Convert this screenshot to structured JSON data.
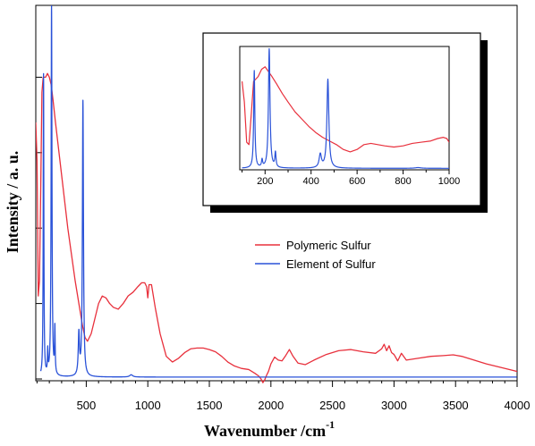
{
  "chart_data": {
    "type": "line",
    "xlabel": "Wavenumber /cm",
    "xlabel_sup": "-1",
    "ylabel": "Intensity / a. u.",
    "xlim": [
      90,
      4000
    ],
    "ylim": [
      0,
      1.0
    ],
    "x_ticks": [
      500,
      1000,
      1500,
      2000,
      2500,
      3000,
      3500,
      4000
    ],
    "legend": {
      "placement": "center-right"
    },
    "colors": {
      "polymeric": "#e8303c",
      "element": "#2a52d8"
    },
    "series": [
      {
        "name": "Polymeric Sulfur",
        "color": "#e8303c",
        "x": [
          90,
          100,
          110,
          120,
          130,
          140,
          150,
          160,
          170,
          185,
          200,
          215,
          230,
          250,
          275,
          300,
          325,
          350,
          380,
          410,
          440,
          470,
          490,
          510,
          540,
          570,
          600,
          630,
          660,
          690,
          720,
          760,
          800,
          840,
          880,
          920,
          950,
          975,
          990,
          1000,
          1010,
          1030,
          1060,
          1100,
          1150,
          1200,
          1250,
          1300,
          1350,
          1400,
          1450,
          1500,
          1550,
          1600,
          1650,
          1700,
          1760,
          1820,
          1870,
          1900,
          1920,
          1935,
          1950,
          1965,
          1980,
          2000,
          2030,
          2060,
          2090,
          2120,
          2150,
          2180,
          2220,
          2280,
          2350,
          2450,
          2550,
          2650,
          2750,
          2850,
          2900,
          2920,
          2940,
          2960,
          2980,
          3000,
          3030,
          3060,
          3100,
          3200,
          3300,
          3400,
          3480,
          3550,
          3650,
          3750,
          3850,
          3950,
          4000
        ],
        "y": [
          0.68,
          0.58,
          0.22,
          0.26,
          0.5,
          0.76,
          0.8,
          0.8,
          0.8,
          0.81,
          0.8,
          0.78,
          0.74,
          0.68,
          0.61,
          0.54,
          0.47,
          0.4,
          0.33,
          0.26,
          0.2,
          0.14,
          0.11,
          0.1,
          0.12,
          0.16,
          0.2,
          0.22,
          0.215,
          0.2,
          0.19,
          0.185,
          0.2,
          0.22,
          0.23,
          0.245,
          0.255,
          0.255,
          0.245,
          0.215,
          0.25,
          0.25,
          0.19,
          0.12,
          0.06,
          0.045,
          0.055,
          0.07,
          0.08,
          0.082,
          0.082,
          0.078,
          0.072,
          0.06,
          0.045,
          0.035,
          0.028,
          0.025,
          0.015,
          0.008,
          0.0,
          -0.01,
          -0.002,
          0.01,
          0.02,
          0.04,
          0.058,
          0.05,
          0.048,
          0.062,
          0.078,
          0.06,
          0.042,
          0.038,
          0.05,
          0.065,
          0.075,
          0.078,
          0.072,
          0.068,
          0.08,
          0.092,
          0.075,
          0.088,
          0.07,
          0.065,
          0.048,
          0.068,
          0.05,
          0.055,
          0.06,
          0.062,
          0.064,
          0.06,
          0.05,
          0.04,
          0.032,
          0.024,
          0.02
        ]
      },
      {
        "name": "Element of Sulfur",
        "color": "#2a52d8",
        "peaks": [
          {
            "x": 153,
            "h": 0.8,
            "w": 3
          },
          {
            "x": 187,
            "h": 0.06,
            "w": 3
          },
          {
            "x": 218,
            "h": 0.98,
            "w": 4
          },
          {
            "x": 245,
            "h": 0.12,
            "w": 3
          },
          {
            "x": 440,
            "h": 0.11,
            "w": 6
          },
          {
            "x": 473,
            "h": 0.73,
            "w": 5
          },
          {
            "x": 865,
            "h": 0.006,
            "w": 15
          }
        ],
        "baseline": 0.005
      }
    ],
    "inset": {
      "xlim": [
        90,
        1000
      ],
      "ylim": [
        0,
        1.0
      ],
      "x_ticks": [
        200,
        400,
        600,
        800,
        1000
      ],
      "polymeric": {
        "x": [
          100,
          110,
          120,
          130,
          140,
          150,
          160,
          170,
          185,
          200,
          215,
          230,
          250,
          275,
          300,
          330,
          360,
          390,
          420,
          450,
          480,
          510,
          540,
          570,
          600,
          630,
          660,
          690,
          720,
          760,
          800,
          840,
          880,
          920,
          950,
          975,
          990,
          1000
        ],
        "y": [
          0.72,
          0.55,
          0.22,
          0.2,
          0.45,
          0.72,
          0.74,
          0.76,
          0.82,
          0.84,
          0.8,
          0.76,
          0.7,
          0.62,
          0.55,
          0.47,
          0.41,
          0.35,
          0.3,
          0.26,
          0.23,
          0.2,
          0.16,
          0.14,
          0.16,
          0.2,
          0.21,
          0.2,
          0.19,
          0.18,
          0.19,
          0.21,
          0.22,
          0.23,
          0.25,
          0.26,
          0.25,
          0.22
        ]
      }
    }
  },
  "legend_items": [
    {
      "label": "Polymeric Sulfur",
      "color": "#e8303c"
    },
    {
      "label": "Element of Sulfur",
      "color": "#2a52d8"
    }
  ]
}
